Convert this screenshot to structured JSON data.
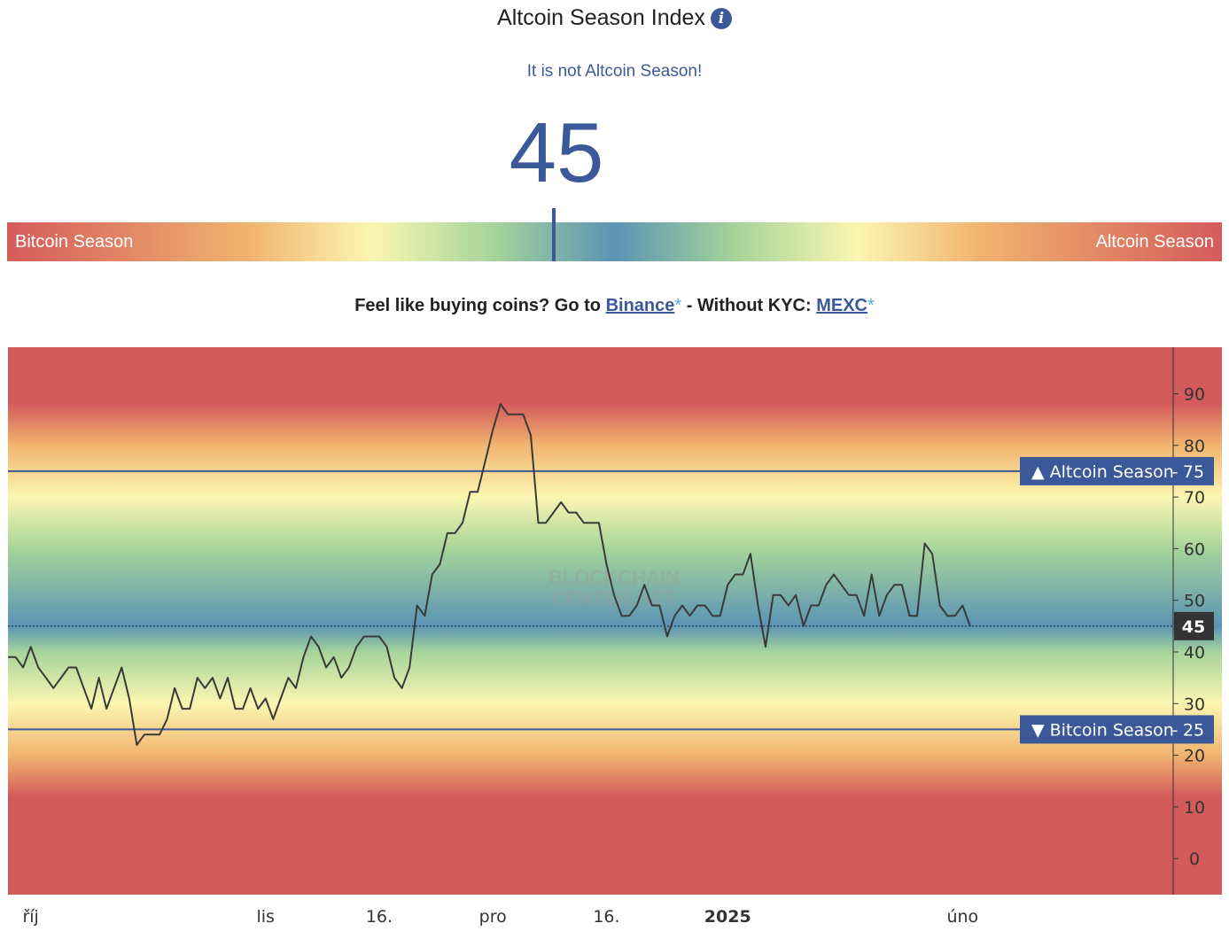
{
  "header": {
    "title": "Altcoin Season Index",
    "info_icon": "info-icon",
    "status": "It is not Altcoin Season!",
    "value": "45"
  },
  "gauge": {
    "left_label": "Bitcoin Season",
    "right_label": "Altcoin Season",
    "value": 45,
    "min": 0,
    "max": 100
  },
  "promo": {
    "text1": "Feel like buying coins? Go to ",
    "link1": "Binance",
    "ast1": "*",
    "text2": " - Without KYC: ",
    "link2": "MEXC",
    "ast2": "*"
  },
  "colors": {
    "accent": "#3b5998",
    "red": "#d45b5b",
    "orange": "#f1b46f",
    "yellow": "#fbf6b1",
    "green": "#a6d49a",
    "blue": "#5b94b4"
  },
  "chart_data": {
    "type": "line",
    "watermark": [
      "BLOCKCHAIN",
      "CENTER.NET"
    ],
    "ylim": [
      -7,
      99
    ],
    "yticks": [
      0,
      10,
      20,
      30,
      40,
      50,
      60,
      70,
      80,
      90
    ],
    "xticks": [
      {
        "label": "říj",
        "index": 3
      },
      {
        "label": "lis",
        "index": 34
      },
      {
        "label": "16.",
        "index": 49
      },
      {
        "label": "pro",
        "index": 64
      },
      {
        "label": "16.",
        "index": 79
      },
      {
        "label": "2025",
        "index": 95
      },
      {
        "label": "úno",
        "index": 126
      }
    ],
    "thresholds": [
      {
        "label": "▲ Altcoin Season",
        "value": 75
      },
      {
        "label": "▼ Bitcoin Season",
        "value": 25
      }
    ],
    "current": {
      "label": "45",
      "value": 45
    },
    "series": [
      {
        "values": [
          39,
          39,
          37,
          41,
          37,
          35,
          33,
          35,
          37,
          37,
          33,
          29,
          35,
          29,
          33,
          37,
          31,
          22,
          24,
          24,
          24,
          27,
          33,
          29,
          29,
          35,
          33,
          35,
          31,
          35,
          29,
          29,
          33,
          29,
          31,
          27,
          31,
          35,
          33,
          39,
          43,
          41,
          37,
          39,
          35,
          37,
          41,
          43,
          43,
          43,
          41,
          35,
          33,
          37,
          49,
          47,
          55,
          57,
          63,
          63,
          65,
          71,
          71,
          77,
          83,
          88,
          86,
          86,
          86,
          82,
          65,
          65,
          67,
          69,
          67,
          67,
          65,
          65,
          65,
          57,
          51,
          47,
          47,
          49,
          53,
          49,
          49,
          43,
          47,
          49,
          47,
          49,
          49,
          47,
          47,
          53,
          55,
          55,
          59,
          49,
          41,
          51,
          51,
          49,
          51,
          45,
          49,
          49,
          53,
          55,
          53,
          51,
          51,
          47,
          55,
          47,
          51,
          53,
          53,
          47,
          47,
          61,
          59,
          49,
          47,
          47,
          49,
          45
        ]
      }
    ]
  }
}
